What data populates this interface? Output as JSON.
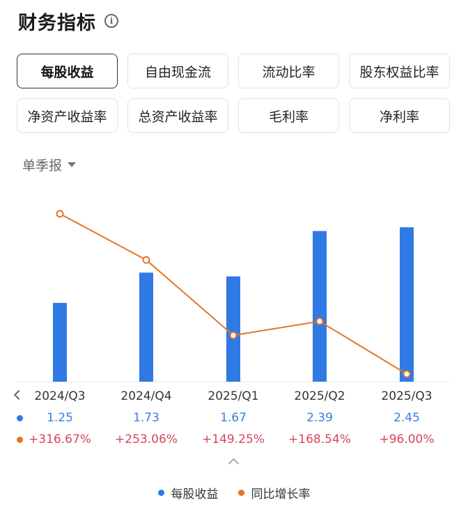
{
  "header": {
    "title": "财务指标",
    "info_icon": "info-icon"
  },
  "tabs": [
    {
      "label": "每股收益",
      "active": true
    },
    {
      "label": "自由现金流",
      "active": false
    },
    {
      "label": "流动比率",
      "active": false
    },
    {
      "label": "股东权益比率",
      "active": false
    },
    {
      "label": "净资产收益率",
      "active": false
    },
    {
      "label": "总资产收益率",
      "active": false
    },
    {
      "label": "毛利率",
      "active": false
    },
    {
      "label": "净利率",
      "active": false
    }
  ],
  "period_selector": {
    "label": "单季报",
    "icon": "caret-down-icon"
  },
  "colors": {
    "bar": "#2f7ae5",
    "line": "#e57522",
    "positive": "#d6455a",
    "eps_text": "#3a7de0"
  },
  "chart_data": {
    "type": "bar",
    "categories": [
      "2024/Q3",
      "2024/Q4",
      "2025/Q1",
      "2025/Q2",
      "2025/Q3"
    ],
    "series": [
      {
        "name": "每股收益",
        "type": "bar",
        "values": [
          1.25,
          1.73,
          1.67,
          2.39,
          2.45
        ],
        "labels": [
          "1.25",
          "1.73",
          "1.67",
          "2.39",
          "2.45"
        ]
      },
      {
        "name": "同比增长率",
        "type": "line",
        "values": [
          316.67,
          253.06,
          149.25,
          168.54,
          96.0
        ],
        "labels": [
          "+316.67%",
          "+253.06%",
          "+149.25%",
          "+168.54%",
          "+96.00%"
        ]
      }
    ],
    "grid": false,
    "legend": "bottom-center"
  }
}
